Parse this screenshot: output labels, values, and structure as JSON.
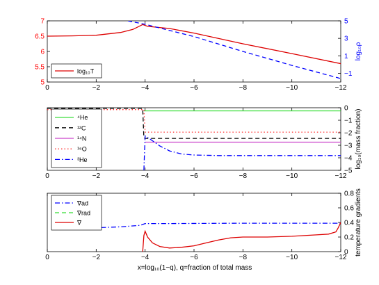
{
  "xaxis": {
    "label": "x=log₁₀(1−q), q=fraction of total mass",
    "ticks": [
      0,
      -2,
      -4,
      -6,
      -8,
      -10,
      -12
    ],
    "tick_labels": [
      "0",
      "−2",
      "−4",
      "−6",
      "−8",
      "−10",
      "−12"
    ],
    "xlim": [
      0,
      -12
    ]
  },
  "chart_data": [
    {
      "type": "line",
      "ylabel_left": "",
      "ylabel_right": "log₁₀ρ",
      "ylim_left": [
        5,
        7
      ],
      "ylim_right": [
        -2,
        5
      ],
      "yticks_left": [
        5,
        5.5,
        6,
        6.5,
        7
      ],
      "yticks_left_labels": [
        "5",
        "5.5",
        "6",
        "6.5",
        "7"
      ],
      "yticks_right": [
        -1,
        1,
        3,
        5
      ],
      "yticks_right_labels": [
        "−1",
        "1",
        "3",
        "5"
      ],
      "left_color": "#ff0000",
      "right_color": "#0000ff",
      "legend_position": "bottom-left",
      "legend": [
        {
          "label": "log₁₀T",
          "color": "#dd0000",
          "dash": "solid"
        }
      ],
      "series": [
        {
          "name": "log₁₀T",
          "axis": "left",
          "color": "#dd0000",
          "dash": "solid",
          "x": [
            0,
            -1,
            -2,
            -3,
            -3.5,
            -3.9,
            -4.1,
            -5,
            -6,
            -8,
            -10,
            -12
          ],
          "y": [
            6.5,
            6.51,
            6.53,
            6.62,
            6.72,
            6.88,
            6.82,
            6.75,
            6.6,
            6.25,
            5.93,
            5.6
          ]
        },
        {
          "name": "log₁₀ρ",
          "axis": "right",
          "color": "#0000ff",
          "dash": "dash",
          "x": [
            -3.3,
            -4,
            -6,
            -8,
            -10,
            -12
          ],
          "y": [
            5.0,
            4.6,
            3.2,
            1.5,
            -0.1,
            -1.6
          ]
        }
      ]
    },
    {
      "type": "line",
      "ylabel_right": "log₁₀(mass fraction)",
      "ylim_right": [
        -5,
        0
      ],
      "yticks_right": [
        -5,
        -4,
        -3,
        -2,
        -1,
        0
      ],
      "yticks_right_labels": [
        "−5",
        "−4",
        "−3",
        "−2",
        "−1",
        "0"
      ],
      "legend_position": "top-left",
      "legend": [
        {
          "label": "⁴He",
          "color": "#33dd33",
          "dash": "solid"
        },
        {
          "label": "¹²C",
          "color": "#000000",
          "dash": "dash"
        },
        {
          "label": "¹⁴N",
          "color": "#cc44cc",
          "dash": "solid"
        },
        {
          "label": "¹⁶O",
          "color": "#ff3333",
          "dash": "dot"
        },
        {
          "label": "³He",
          "color": "#0000ff",
          "dash": "dashdot"
        }
      ],
      "series": [
        {
          "name": "⁴He",
          "color": "#33dd33",
          "dash": "solid",
          "x": [
            -3.95,
            -12
          ],
          "y": [
            -0.25,
            -0.25
          ]
        },
        {
          "name": "¹²C",
          "color": "#000000",
          "dash": "dash",
          "x": [
            0,
            -3.9,
            -3.95,
            -4.0,
            -12
          ],
          "y": [
            -0.05,
            -0.05,
            -2.4,
            -2.45,
            -2.45
          ]
        },
        {
          "name": "¹⁴N",
          "color": "#cc44cc",
          "dash": "solid",
          "x": [
            -4.0,
            -12
          ],
          "y": [
            -2.75,
            -2.75
          ]
        },
        {
          "name": "¹⁶O",
          "color": "#ff3333",
          "dash": "dot",
          "x": [
            0,
            -3.95,
            -4.0,
            -12
          ],
          "y": [
            -0.15,
            -0.15,
            -1.95,
            -1.95
          ]
        },
        {
          "name": "³He",
          "color": "#0000ff",
          "dash": "dashdot",
          "x": [
            -3.95,
            -4.0,
            -4.2,
            -4.6,
            -5,
            -5.5,
            -6,
            -7,
            -12
          ],
          "y": [
            -5,
            -2.25,
            -2.5,
            -3.05,
            -3.45,
            -3.7,
            -3.78,
            -3.82,
            -3.82
          ]
        }
      ]
    },
    {
      "type": "line",
      "ylabel_right": "temperature gradients",
      "ylim_right": [
        0,
        0.8
      ],
      "yticks_right": [
        0,
        0.2,
        0.4,
        0.6,
        0.8
      ],
      "yticks_right_labels": [
        "0",
        "0.2",
        "0.4",
        "0.6",
        "0.8"
      ],
      "legend_position": "top-left",
      "legend": [
        {
          "label": "∇ad",
          "color": "#0000ff",
          "dash": "dashdot"
        },
        {
          "label": "∇rad",
          "color": "#33dd33",
          "dash": "dash"
        },
        {
          "label": "∇",
          "color": "#dd0000",
          "dash": "solid"
        }
      ],
      "series": [
        {
          "name": "∇ad",
          "color": "#0000ff",
          "dash": "dashdot",
          "x": [
            -2.2,
            -3,
            -3.8,
            -4.0,
            -5,
            -8,
            -11,
            -11.8,
            -12
          ],
          "y": [
            0.33,
            0.34,
            0.36,
            0.385,
            0.385,
            0.39,
            0.39,
            0.39,
            0.39
          ]
        },
        {
          "name": "∇",
          "color": "#dd0000",
          "dash": "solid",
          "x": [
            -3.9,
            -3.95,
            -4.0,
            -4.1,
            -4.3,
            -4.6,
            -5,
            -5.5,
            -6,
            -6.5,
            -7,
            -7.5,
            -8,
            -9,
            -10,
            -11,
            -11.5,
            -11.8,
            -11.9,
            -12
          ],
          "y": [
            0.0,
            0.22,
            0.28,
            0.2,
            0.12,
            0.07,
            0.05,
            0.06,
            0.08,
            0.12,
            0.16,
            0.19,
            0.2,
            0.2,
            0.21,
            0.23,
            0.24,
            0.27,
            0.33,
            0.4
          ]
        }
      ]
    }
  ]
}
